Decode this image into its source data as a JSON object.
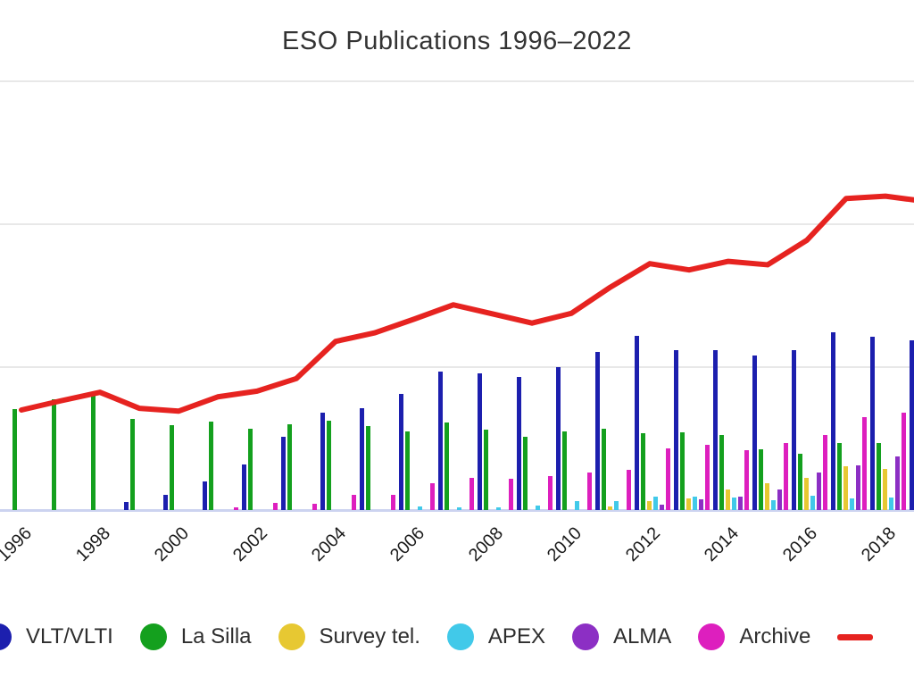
{
  "title": "ESO Publications 1996–2022",
  "legend": [
    {
      "key": "vlt",
      "label": "VLT/VLTI",
      "color": "#1c1fae",
      "swatch": "circle"
    },
    {
      "key": "lasilla",
      "label": "La Silla",
      "color": "#14a01e",
      "swatch": "circle"
    },
    {
      "key": "survey",
      "label": "Survey tel.",
      "color": "#e7c832",
      "swatch": "circle"
    },
    {
      "key": "apex",
      "label": "APEX",
      "color": "#41c9e9",
      "swatch": "circle"
    },
    {
      "key": "alma",
      "label": "ALMA",
      "color": "#8c2fc4",
      "swatch": "circle"
    },
    {
      "key": "archive",
      "label": "Archive",
      "color": "#dd1fbe",
      "swatch": "circle"
    },
    {
      "key": "line",
      "label": "",
      "color": "#e62320",
      "swatch": "line"
    }
  ],
  "chart_data": {
    "type": "bar",
    "title": "ESO Publications 1996–2022",
    "xlabel": "",
    "ylabel": "",
    "ylim": [
      0,
      750
    ],
    "grid": true,
    "gridline_values": [
      250,
      500,
      750
    ],
    "legend_position": "bottom",
    "x": [
      1996,
      1997,
      1998,
      1999,
      2000,
      2001,
      2002,
      2003,
      2004,
      2005,
      2006,
      2007,
      2008,
      2009,
      2010,
      2011,
      2012,
      2013,
      2014,
      2015,
      2016,
      2017,
      2018,
      2019
    ],
    "x_tick_labels": [
      "1996",
      "1998",
      "2000",
      "2002",
      "2004",
      "2006",
      "2008",
      "2010",
      "2012",
      "2014",
      "2016",
      "2018"
    ],
    "note": "figure cropped: y-axis labels and years 2020-2022 outside visible area; 2019 group partially visible",
    "series": [
      {
        "name": "VLT/VLTI",
        "color": "#1c1fae",
        "values": [
          0,
          0,
          0,
          14,
          26,
          50,
          80,
          128,
          170,
          178,
          203,
          242,
          239,
          233,
          250,
          277,
          305,
          280,
          280,
          271,
          280,
          311,
          303,
          297
        ]
      },
      {
        "name": "La Silla",
        "color": "#14a01e",
        "values": [
          177,
          194,
          205,
          159,
          148,
          155,
          142,
          150,
          156,
          147,
          138,
          153,
          141,
          128,
          138,
          142,
          134,
          136,
          131,
          106,
          98,
          117,
          117,
          null
        ]
      },
      {
        "name": "Survey tel.",
        "color": "#e7c832",
        "values": [
          0,
          0,
          0,
          0,
          0,
          0,
          0,
          0,
          0,
          0,
          0,
          0,
          0,
          0,
          0,
          6,
          16,
          20,
          36,
          47,
          56,
          77,
          72,
          null
        ]
      },
      {
        "name": "APEX",
        "color": "#41c9e9",
        "values": [
          0,
          0,
          0,
          0,
          0,
          0,
          0,
          0,
          0,
          0,
          6,
          5,
          5,
          8,
          16,
          16,
          23,
          23,
          22,
          17,
          25,
          20,
          22,
          null
        ]
      },
      {
        "name": "ALMA",
        "color": "#8c2fc4",
        "values": [
          0,
          0,
          0,
          0,
          0,
          0,
          0,
          0,
          0,
          0,
          0,
          0,
          0,
          0,
          0,
          0,
          9,
          19,
          23,
          36,
          66,
          78,
          94,
          null
        ]
      },
      {
        "name": "Archive",
        "color": "#dd1fbe",
        "values": [
          0,
          0,
          0,
          0,
          0,
          5,
          12,
          11,
          27,
          27,
          47,
          56,
          55,
          59,
          66,
          70,
          108,
          114,
          105,
          117,
          131,
          163,
          170,
          null
        ]
      }
    ],
    "line_series": {
      "name": "",
      "color": "#e62320",
      "values": [
        175,
        191,
        206,
        178,
        173,
        198,
        208,
        230,
        295,
        310,
        334,
        359,
        343,
        327,
        344,
        390,
        431,
        420,
        435,
        429,
        472,
        545,
        549,
        540
      ]
    }
  },
  "layout_colors": {
    "gridline": "#e8e8e8",
    "baseline": "#ccd3f0",
    "title_text": "#333333",
    "tick_text": "#1a1a1a"
  }
}
